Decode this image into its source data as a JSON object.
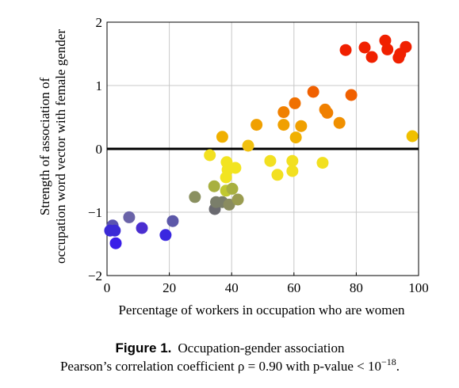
{
  "chart_data": {
    "type": "scatter",
    "x_label": "Percentage of workers in occupation who are women",
    "y_label_lines": [
      "Strength of association of",
      "occupation word vector with female gender"
    ],
    "series": [
      {
        "x": [
          1.8,
          1,
          2.5,
          2.8,
          7.1,
          11.2,
          18.8,
          21.1,
          28.2,
          34.4,
          34.6,
          35,
          37,
          38.2,
          39.2,
          40.2,
          42,
          33,
          38.4,
          38.7,
          38.2,
          41.2,
          37,
          45.3,
          48,
          52.4,
          54.7,
          56.7,
          56.7,
          59.5,
          59.5,
          60.3,
          60.6,
          62.3,
          66.2,
          69.2,
          70,
          70.7,
          74.6,
          78.4,
          76.6,
          82.7,
          85,
          89.3,
          90,
          93.6,
          94.1,
          95.9,
          98
        ],
        "values": [
          -1.21,
          -1.29,
          -1.29,
          -1.49,
          -1.08,
          -1.25,
          -1.36,
          -1.14,
          -0.76,
          -0.59,
          -0.95,
          -0.84,
          -0.84,
          -0.66,
          -0.88,
          -0.63,
          -0.8,
          -0.1,
          -0.21,
          -0.33,
          -0.45,
          -0.3,
          0.19,
          0.05,
          0.38,
          -0.19,
          -0.41,
          0.58,
          0.38,
          -0.19,
          -0.35,
          0.72,
          0.18,
          0.36,
          0.9,
          -0.22,
          0.62,
          0.57,
          0.41,
          0.85,
          1.56,
          1.6,
          1.45,
          1.71,
          1.57,
          1.44,
          1.5,
          1.61,
          0.2
        ],
        "colors": [
          "#5b54b0",
          "#3b2ad6",
          "#3b2ad6",
          "#3a1ee8",
          "#6a63a8",
          "#4a2ed0",
          "#3a28e0",
          "#5c58a8",
          "#8a9060",
          "#a8b040",
          "#6a6a70",
          "#7a7e6a",
          "#7a7e6a",
          "#c0c830",
          "#8a8c60",
          "#a8b040",
          "#9a9c50",
          "#f2e020",
          "#f2e420",
          "#f2e420",
          "#f2e420",
          "#f2e420",
          "#f0b000",
          "#f0c010",
          "#f0a000",
          "#f2e020",
          "#f2e020",
          "#f08000",
          "#f0a000",
          "#f2e020",
          "#f2e020",
          "#f07000",
          "#f0b000",
          "#f0a000",
          "#f06000",
          "#f2e020",
          "#f08000",
          "#f08000",
          "#f09000",
          "#f06000",
          "#f02000",
          "#f02000",
          "#f02000",
          "#f02000",
          "#f02000",
          "#f02000",
          "#f02000",
          "#f02000",
          "#f0c000"
        ]
      }
    ],
    "xlim": [
      0,
      100
    ],
    "xticks": [
      0,
      20,
      40,
      60,
      80,
      100
    ],
    "ylim": [
      -2,
      2
    ],
    "yticks": [
      {
        "value": -2,
        "label": "−2"
      },
      {
        "value": -1,
        "label": "−1"
      },
      0,
      1,
      2
    ],
    "grid": true,
    "zero_line": true,
    "caption": {
      "label": "Figure 1.",
      "title": "Occupation-gender association",
      "text": "Pearson’s correlation coefficient ρ = 0.90 with p-value < 10",
      "exponent": "−18",
      "end": "."
    }
  }
}
